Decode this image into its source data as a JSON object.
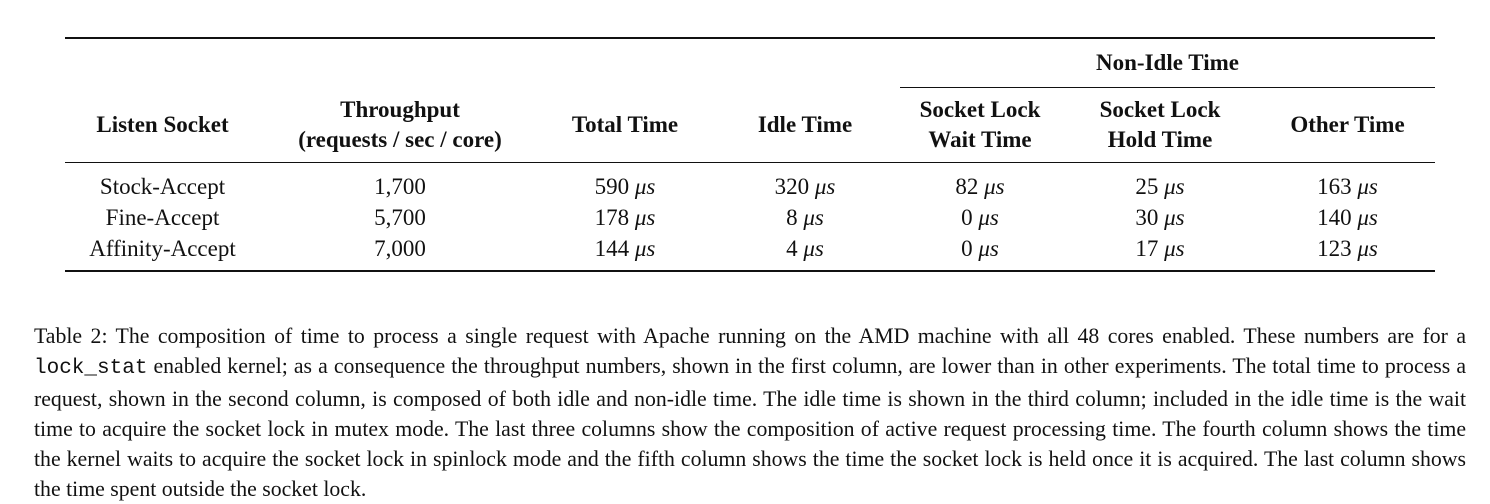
{
  "table": {
    "group_header": "Non-Idle Time",
    "columns": [
      {
        "line1": "Listen Socket",
        "line2": ""
      },
      {
        "line1": "Throughput",
        "line2": "(requests / sec / core)"
      },
      {
        "line1": "Total Time",
        "line2": ""
      },
      {
        "line1": "Idle Time",
        "line2": ""
      },
      {
        "line1": "Socket Lock",
        "line2": "Wait Time"
      },
      {
        "line1": "Socket Lock",
        "line2": "Hold Time"
      },
      {
        "line1": "Other Time",
        "line2": ""
      }
    ],
    "unit": "μs",
    "rows": [
      {
        "name": "Stock-Accept",
        "throughput": "1,700",
        "total": "590",
        "idle": "320",
        "wait": "82",
        "hold": "25",
        "other": "163"
      },
      {
        "name": "Fine-Accept",
        "throughput": "5,700",
        "total": "178",
        "idle": "8",
        "wait": "0",
        "hold": "30",
        "other": "140"
      },
      {
        "name": "Affinity-Accept",
        "throughput": "7,000",
        "total": "144",
        "idle": "4",
        "wait": "0",
        "hold": "17",
        "other": "123"
      }
    ]
  },
  "caption": {
    "part1": "Table 2: The composition of time to process a single request with Apache running on the AMD machine with all 48 cores enabled. These numbers are for a ",
    "code": "lock_stat",
    "part2": " enabled kernel; as a consequence the throughput numbers, shown in the first column, are lower than in other experiments. The total time to process a request, shown in the second column, is composed of both idle and non-idle time. The idle time is shown in the third column; included in the idle time is the wait time to acquire the socket lock in mutex mode. The last three columns show the composition of active request processing time. The fourth column shows the time the kernel waits to acquire the socket lock in spinlock mode and the fifth column shows the time the socket lock is held once it is acquired. The last column shows the time spent outside the socket lock."
  }
}
